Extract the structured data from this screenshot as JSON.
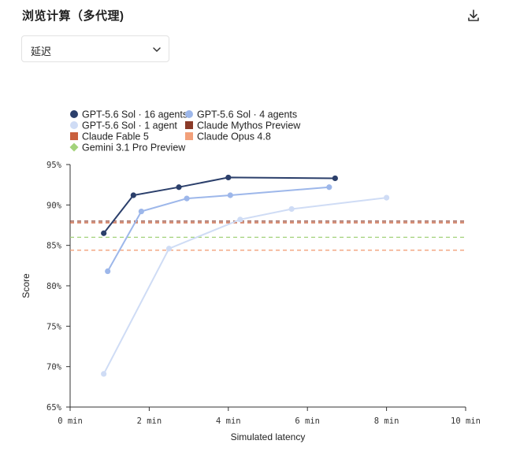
{
  "header": {
    "title": "浏览计算（多代理)",
    "download_icon": "download-icon"
  },
  "dropdown": {
    "selected": "延迟",
    "icon": "chevron-down-icon"
  },
  "chart_data": {
    "type": "line",
    "xlabel": "Simulated latency",
    "ylabel": "Score",
    "xlim": [
      0,
      10
    ],
    "ylim": [
      65,
      95
    ],
    "x_ticks": [
      0,
      2,
      4,
      6,
      8,
      10
    ],
    "x_tick_labels": [
      "0 min",
      "2 min",
      "4 min",
      "6 min",
      "8 min",
      "10 min"
    ],
    "y_ticks": [
      65,
      70,
      75,
      80,
      85,
      90,
      95
    ],
    "y_tick_labels": [
      "65%",
      "70%",
      "75%",
      "80%",
      "85%",
      "90%",
      "95%"
    ],
    "grid": false,
    "legend_position": "top-left",
    "series": [
      {
        "name": "GPT-5.6 Sol · 16 agents",
        "color": "#2b3f6b",
        "marker": "circle",
        "points": [
          [
            0.85,
            86.5
          ],
          [
            1.6,
            91.2
          ],
          [
            2.75,
            92.2
          ],
          [
            4.0,
            93.4
          ],
          [
            6.7,
            93.3
          ]
        ]
      },
      {
        "name": "GPT-5.6 Sol · 4 agents",
        "color": "#9db7ea",
        "marker": "circle",
        "points": [
          [
            0.95,
            81.8
          ],
          [
            1.8,
            89.2
          ],
          [
            2.95,
            90.8
          ],
          [
            4.05,
            91.2
          ],
          [
            6.55,
            92.2
          ]
        ]
      },
      {
        "name": "GPT-5.6 Sol · 1 agent",
        "color": "#cfdcf5",
        "marker": "circle",
        "points": [
          [
            0.85,
            69.1
          ],
          [
            2.5,
            84.6
          ],
          [
            4.3,
            88.2
          ],
          [
            5.6,
            89.5
          ],
          [
            8.0,
            90.9
          ]
        ]
      },
      {
        "name": "Claude Mythos Preview",
        "color": "#8a3a28",
        "marker": "square",
        "style": "dashed",
        "value": 88.0
      },
      {
        "name": "Claude Fable 5",
        "color": "#c9603e",
        "marker": "square",
        "style": "dashed",
        "value": 87.8
      },
      {
        "name": "Claude Opus 4.8",
        "color": "#f2a07a",
        "marker": "square",
        "style": "dashed",
        "value": 84.4
      },
      {
        "name": "Gemini 3.1 Pro Preview",
        "color": "#a3d27a",
        "marker": "diamond",
        "style": "dashed",
        "value": 86.0
      }
    ]
  }
}
